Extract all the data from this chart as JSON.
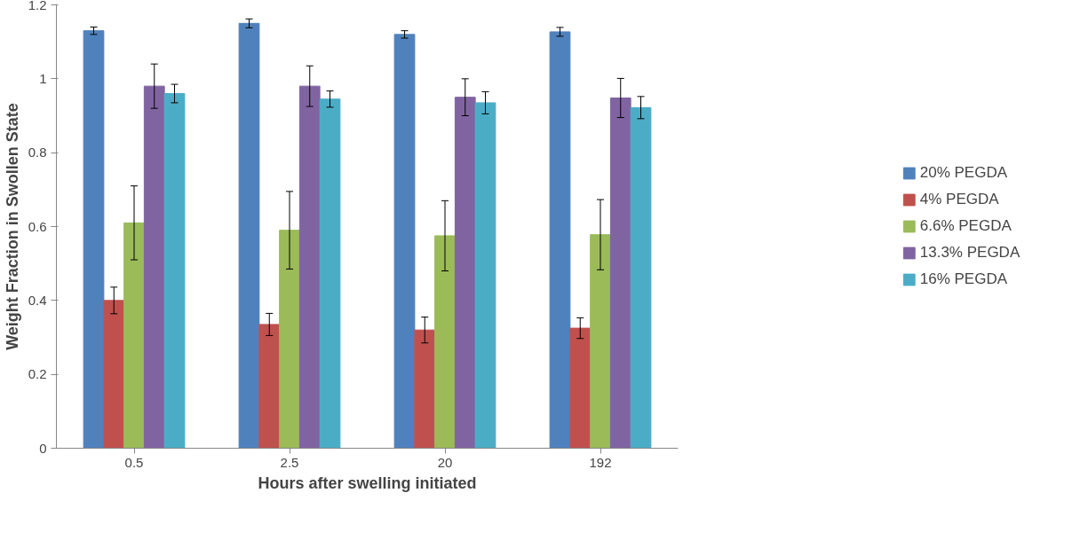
{
  "chart_data": {
    "type": "bar",
    "xlabel": "Hours after swelling initiated",
    "ylabel": "Weight Fraction in Swollen State",
    "categories": [
      "0.5",
      "2.5",
      "20",
      "192"
    ],
    "ylim": [
      0,
      1.2
    ],
    "yticks": [
      0,
      0.2,
      0.4,
      0.6,
      0.8,
      1,
      1.2
    ],
    "grid": false,
    "legend": "right",
    "series": [
      {
        "name": "20% PEGDA",
        "color": "#4f81bd",
        "values": [
          1.13,
          1.15,
          1.12,
          1.127
        ],
        "errors": [
          0.01,
          0.012,
          0.01,
          0.012
        ]
      },
      {
        "name": "4% PEGDA",
        "color": "#c0504d",
        "values": [
          0.4,
          0.335,
          0.32,
          0.325
        ],
        "errors": [
          0.036,
          0.03,
          0.035,
          0.028
        ]
      },
      {
        "name": "6.6% PEGDA",
        "color": "#9bbb59",
        "values": [
          0.61,
          0.59,
          0.575,
          0.578
        ],
        "errors": [
          0.1,
          0.105,
          0.095,
          0.095
        ]
      },
      {
        "name": "13.3% PEGDA",
        "color": "#8064a2",
        "values": [
          0.98,
          0.98,
          0.95,
          0.948
        ],
        "errors": [
          0.06,
          0.055,
          0.05,
          0.053
        ]
      },
      {
        "name": "16% PEGDA",
        "color": "#4bacc6",
        "values": [
          0.96,
          0.945,
          0.935,
          0.922
        ],
        "errors": [
          0.025,
          0.022,
          0.03,
          0.03
        ]
      }
    ]
  }
}
